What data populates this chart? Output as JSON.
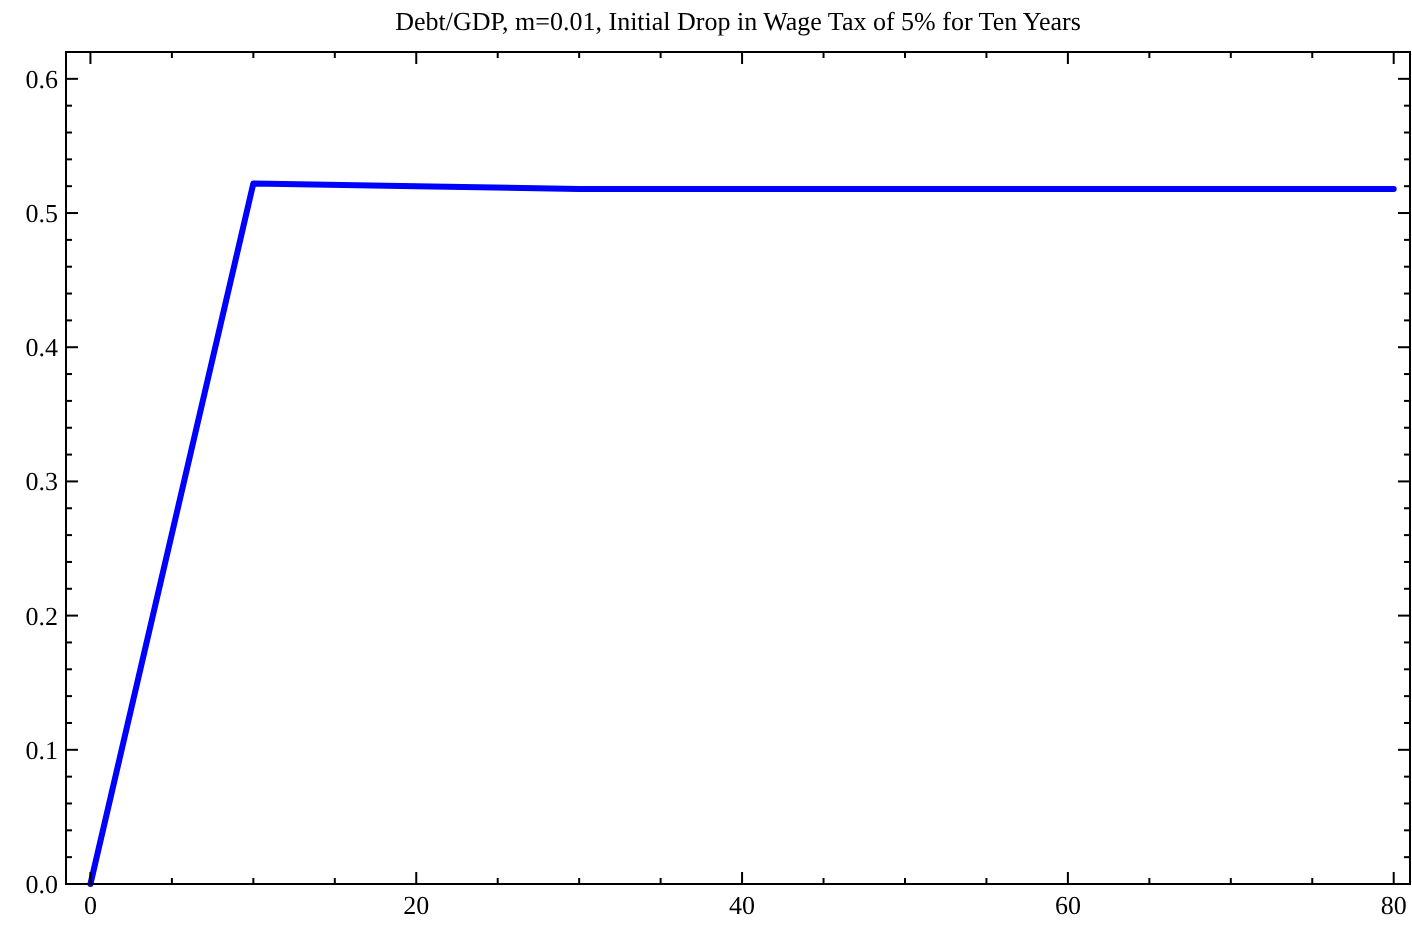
{
  "chart_data": {
    "type": "line",
    "title": "Debt/GDP, m=0.01, Initial Drop in Wage Tax of 5% for Ten Years",
    "x": [
      0,
      10,
      20,
      30,
      80
    ],
    "series": [
      {
        "color": "#0000ff",
        "values": [
          0,
          0.522,
          0.52,
          0.518,
          0.518
        ]
      }
    ],
    "xlim": [
      -1.5,
      81
    ],
    "ylim": [
      0,
      0.62
    ],
    "xticks": [
      0,
      {
        "value": 5,
        "label": null
      },
      {
        "value": 10,
        "label": null
      },
      {
        "value": 15,
        "label": null
      },
      20,
      {
        "value": 25,
        "label": null
      },
      {
        "value": 30,
        "label": null
      },
      {
        "value": 35,
        "label": null
      },
      40,
      {
        "value": 45,
        "label": null
      },
      {
        "value": 50,
        "label": null
      },
      {
        "value": 55,
        "label": null
      },
      60,
      {
        "value": 65,
        "label": null
      },
      {
        "value": 70,
        "label": null
      },
      {
        "value": 75,
        "label": null
      },
      80
    ],
    "yticks": [
      {
        "value": 0,
        "label": "0.0"
      },
      {
        "value": 0.02,
        "label": null
      },
      {
        "value": 0.04,
        "label": null
      },
      {
        "value": 0.06,
        "label": null
      },
      {
        "value": 0.08,
        "label": null
      },
      0.1,
      {
        "value": 0.12,
        "label": null
      },
      {
        "value": 0.14,
        "label": null
      },
      {
        "value": 0.16,
        "label": null
      },
      {
        "value": 0.18,
        "label": null
      },
      0.2,
      {
        "value": 0.22,
        "label": null
      },
      {
        "value": 0.24,
        "label": null
      },
      {
        "value": 0.26,
        "label": null
      },
      {
        "value": 0.28,
        "label": null
      },
      0.3,
      {
        "value": 0.32,
        "label": null
      },
      {
        "value": 0.34,
        "label": null
      },
      {
        "value": 0.36,
        "label": null
      },
      {
        "value": 0.38,
        "label": null
      },
      0.4,
      {
        "value": 0.42,
        "label": null
      },
      {
        "value": 0.44,
        "label": null
      },
      {
        "value": 0.46,
        "label": null
      },
      {
        "value": 0.48,
        "label": null
      },
      0.5,
      {
        "value": 0.52,
        "label": null
      },
      {
        "value": 0.54,
        "label": null
      },
      {
        "value": 0.56,
        "label": null
      },
      {
        "value": 0.58,
        "label": null
      },
      0.6
    ],
    "grid": false,
    "line_style": "solid"
  }
}
